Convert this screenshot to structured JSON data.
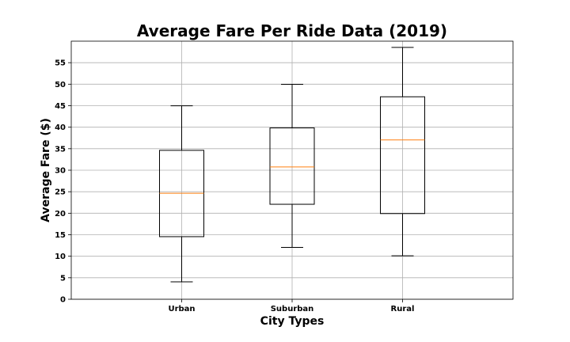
{
  "chart_data": {
    "type": "box",
    "title": "Average Fare Per Ride Data (2019)",
    "xlabel": "City Types",
    "ylabel": "Average Fare ($)",
    "categories": [
      "Urban",
      "Suburban",
      "Rural"
    ],
    "series": [
      {
        "category": "Urban",
        "min": 4.05,
        "q1": 14.55,
        "median": 24.64,
        "q3": 34.62,
        "max": 44.97
      },
      {
        "category": "Suburban",
        "min": 12.05,
        "q1": 22.08,
        "median": 30.75,
        "q3": 39.83,
        "max": 49.96
      },
      {
        "category": "Rural",
        "min": 10.11,
        "q1": 19.92,
        "median": 37.05,
        "q3": 47.07,
        "max": 58.55
      }
    ],
    "ylim": [
      0,
      60
    ],
    "yticks": [
      0,
      5,
      10,
      15,
      20,
      25,
      30,
      35,
      40,
      45,
      50,
      55
    ],
    "grid": true,
    "colors": {
      "box": "#000000",
      "median": "#ff7f0e",
      "grid": "#b0b0b0"
    }
  }
}
